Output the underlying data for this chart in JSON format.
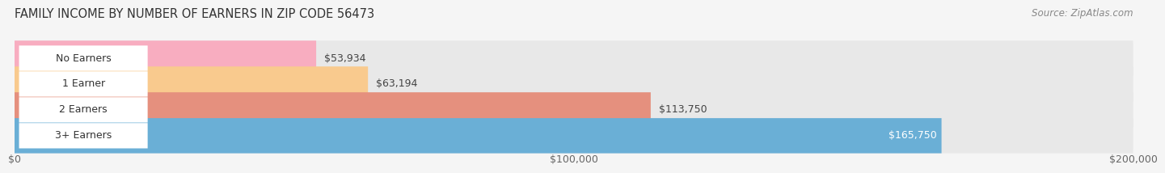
{
  "title": "FAMILY INCOME BY NUMBER OF EARNERS IN ZIP CODE 56473",
  "source": "Source: ZipAtlas.com",
  "categories": [
    "No Earners",
    "1 Earner",
    "2 Earners",
    "3+ Earners"
  ],
  "values": [
    53934,
    63194,
    113750,
    165750
  ],
  "bar_colors": [
    "#f8adc0",
    "#f9ca8e",
    "#e5907e",
    "#6aafd6"
  ],
  "bar_bg_color": "#e8e8e8",
  "value_labels": [
    "$53,934",
    "$63,194",
    "$113,750",
    "$165,750"
  ],
  "value_label_colors": [
    "#444444",
    "#444444",
    "#444444",
    "#ffffff"
  ],
  "xmax": 200000,
  "xticks": [
    0,
    100000,
    200000
  ],
  "xtick_labels": [
    "$0",
    "$100,000",
    "$200,000"
  ],
  "title_fontsize": 10.5,
  "source_fontsize": 8.5,
  "background_color": "#f5f5f5",
  "grid_color": "#d0d0d0",
  "pill_bg": "#ffffff",
  "label_fontsize": 9,
  "value_fontsize": 9
}
